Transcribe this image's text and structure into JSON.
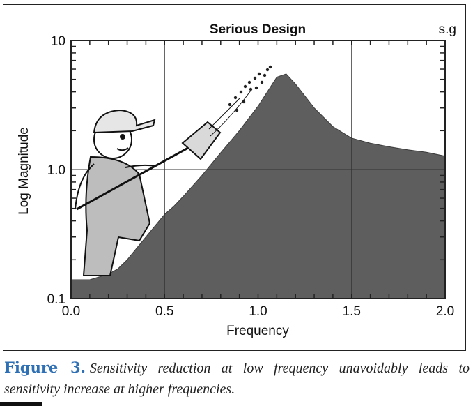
{
  "chart_data": {
    "type": "area",
    "title": "Serious Design",
    "signature": "s.g",
    "xlabel": "Frequency",
    "ylabel": "Log Magnitude",
    "y_scale": "log",
    "xlim": [
      0.0,
      2.0
    ],
    "ylim": [
      0.1,
      10
    ],
    "x_ticks": [
      "0.0",
      "0.5",
      "1.0",
      "1.5",
      "2.0"
    ],
    "y_ticks": [
      "0.1",
      "1.0",
      "10"
    ],
    "grid": true,
    "fill_color": "#5e5e5e",
    "x": [
      0.0,
      0.1,
      0.2,
      0.25,
      0.3,
      0.4,
      0.5,
      0.55,
      0.6,
      0.7,
      0.8,
      0.9,
      1.0,
      1.1,
      1.15,
      1.2,
      1.3,
      1.4,
      1.5,
      1.6,
      1.7,
      1.8,
      1.9,
      2.0
    ],
    "y": [
      0.14,
      0.14,
      0.155,
      0.17,
      0.2,
      0.3,
      0.45,
      0.52,
      0.62,
      0.9,
      1.35,
      2.0,
      3.1,
      5.2,
      5.5,
      4.6,
      3.0,
      2.15,
      1.75,
      1.6,
      1.5,
      1.42,
      1.36,
      1.27
    ]
  },
  "figure": {
    "label": "Figure 3.",
    "caption": "Sensitivity reduction at low frequency unavoidably leads to sensitivity increase at higher frequencies."
  }
}
